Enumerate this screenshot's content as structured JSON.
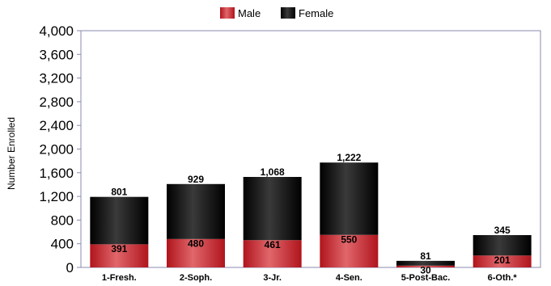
{
  "chart_data": {
    "type": "bar",
    "stacked": true,
    "categories": [
      "1-Fresh.",
      "2-Soph.",
      "3-Jr.",
      "4-Sen.",
      "5-Post-Bac.",
      "6-Oth.*"
    ],
    "series": [
      {
        "name": "Male",
        "values": [
          391,
          480,
          461,
          550,
          30,
          201
        ],
        "labels": [
          "391",
          "480",
          "461",
          "550",
          "30",
          "201"
        ],
        "color": "#c0262e"
      },
      {
        "name": "Female",
        "values": [
          801,
          929,
          1068,
          1222,
          81,
          345
        ],
        "labels": [
          "801",
          "929",
          "1,068",
          "1,222",
          "81",
          "345"
        ],
        "color": "#111111"
      }
    ],
    "ylabel": "Number Enrolled",
    "xlabel": "",
    "ylim": [
      0,
      4000
    ],
    "yticks": [
      "0",
      "400",
      "800",
      "1,200",
      "1,600",
      "2,000",
      "2,400",
      "2,800",
      "3,200",
      "3,600",
      "4,000"
    ],
    "grid": false,
    "legend_position": "top-center"
  }
}
